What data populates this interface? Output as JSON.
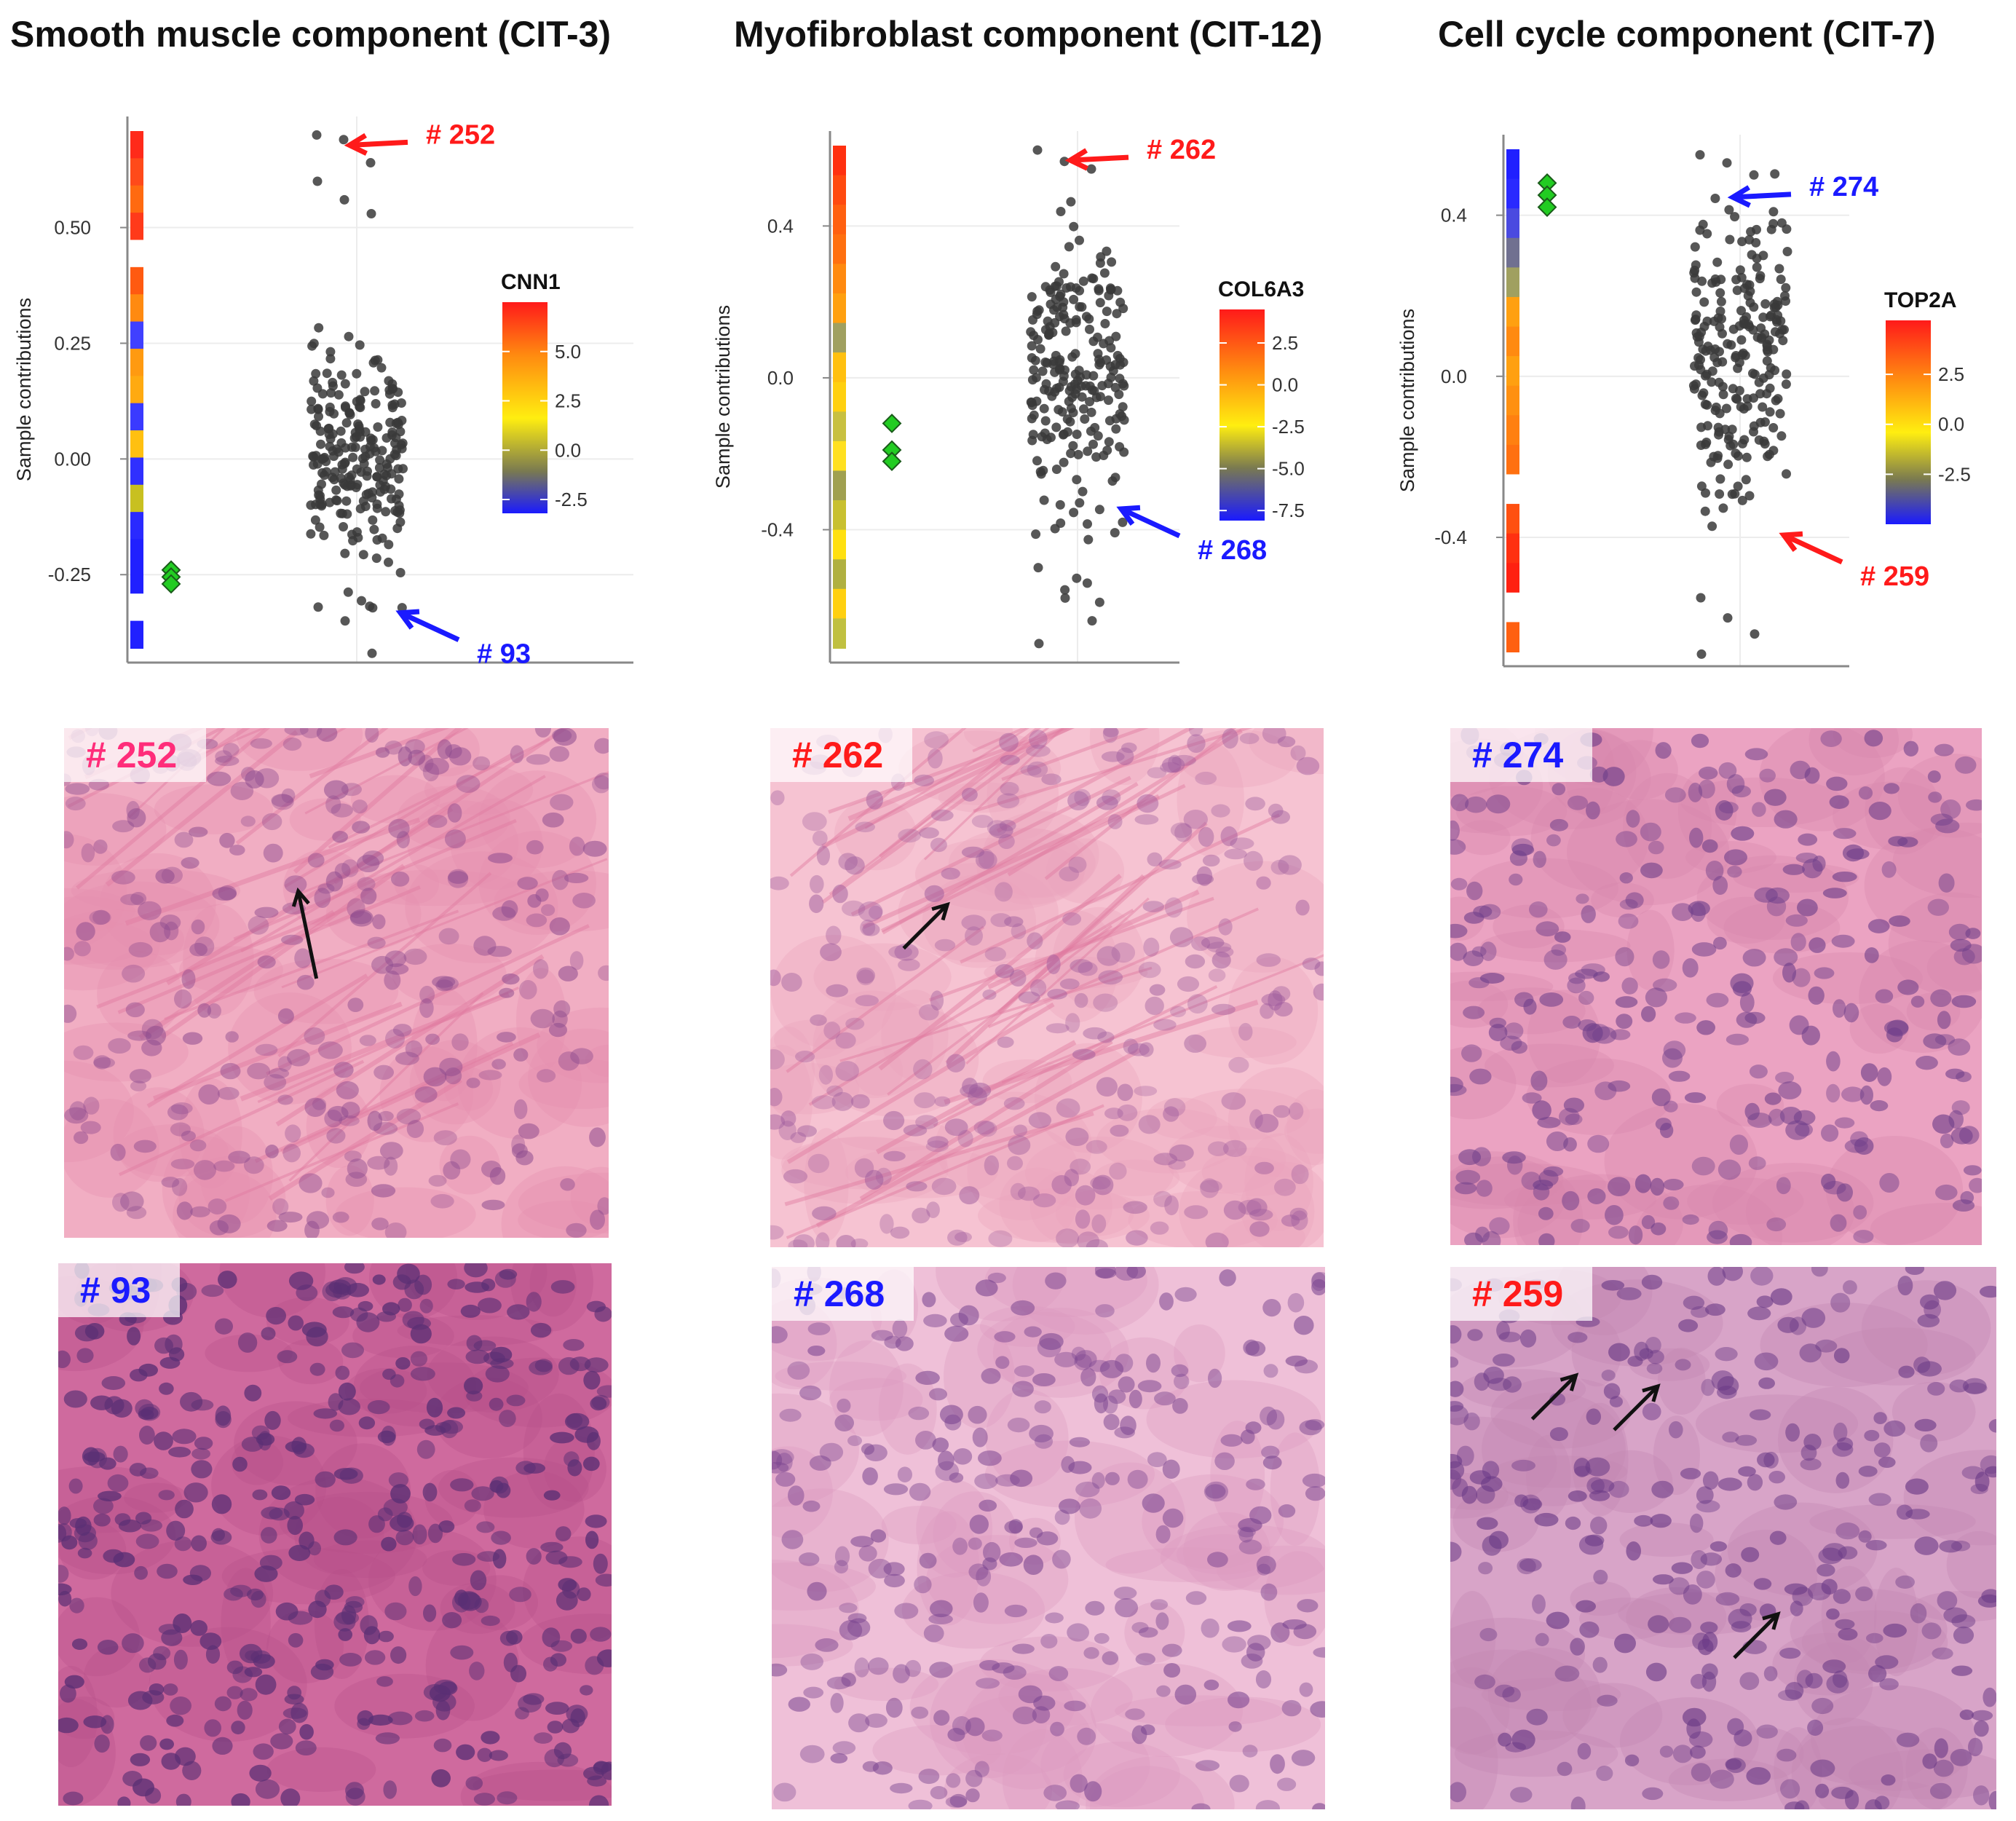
{
  "colors": {
    "red": "#ff1a1a",
    "blue": "#1a1aff",
    "pink": "#ff2d7a",
    "dot": "#3a3a3a",
    "diamond": "#22cc22"
  },
  "panels": [
    {
      "title": "Smooth muscle component (CIT-3)",
      "chart_data": {
        "type": "scatter",
        "ylabel": "Sample contributions",
        "ylim": [
          -0.44,
          0.74
        ],
        "yticks": [
          "0.50",
          "0.25",
          "0.00",
          "-0.25"
        ],
        "ytick_values": [
          0.5,
          0.25,
          0,
          -0.25
        ],
        "legend_title": "CNN1",
        "legend_ticks": [
          "5.0",
          "2.5",
          "0.0",
          "-2.5"
        ],
        "legend_tick_values": [
          5,
          2.5,
          0,
          -2.5
        ],
        "legend_range": [
          -3.2,
          7.5
        ],
        "point_center": 0.0,
        "point_spread": 0.13,
        "point_count": 230,
        "diamonds": [
          -0.24,
          -0.255,
          -0.27
        ],
        "outliers": [
          0.7,
          0.69,
          0.64,
          0.6,
          0.56,
          0.53,
          -0.32,
          -0.35,
          -0.42
        ],
        "annotations": [
          {
            "label": "# 252",
            "value": 0.7,
            "color": "red",
            "dir": "up"
          },
          {
            "label": "# 93",
            "value": -0.32,
            "color": "blue",
            "dir": "down"
          }
        ]
      },
      "images": [
        {
          "label": "# 252",
          "label_color": "pink",
          "stain": "pink-light",
          "arrows": 1
        },
        {
          "label": "# 93",
          "label_color": "blue",
          "stain": "purple-dense",
          "arrows": 0
        }
      ]
    },
    {
      "title": "Myofibroblast component (CIT-12)",
      "chart_data": {
        "type": "scatter",
        "ylabel": "Sample contributions",
        "ylim": [
          -0.75,
          0.65
        ],
        "yticks": [
          "0.4",
          "0.0",
          "-0.4"
        ],
        "ytick_values": [
          0.4,
          0,
          -0.4
        ],
        "legend_title": "COL6A3",
        "legend_ticks": [
          "2.5",
          "0.0",
          "-2.5",
          "-5.0",
          "-7.5"
        ],
        "legend_tick_values": [
          2.5,
          0,
          -2.5,
          -5,
          -7.5
        ],
        "legend_range": [
          -8.1,
          4.5
        ],
        "point_center": 0.0,
        "point_spread": 0.22,
        "point_count": 230,
        "diamonds": [
          -0.12,
          -0.19,
          -0.22
        ],
        "outliers": [
          0.6,
          0.57,
          0.55,
          -0.5,
          -0.58,
          -0.64,
          -0.7
        ],
        "annotations": [
          {
            "label": "# 262",
            "value": 0.6,
            "color": "red",
            "dir": "up"
          },
          {
            "label": "# 268",
            "value": -0.33,
            "color": "blue",
            "dir": "down"
          }
        ]
      },
      "images": [
        {
          "label": "# 262",
          "label_color": "red",
          "stain": "pink-fiber",
          "arrows": 1
        },
        {
          "label": "# 268",
          "label_color": "blue",
          "stain": "pink-clear",
          "arrows": 0
        }
      ]
    },
    {
      "title": "Cell cycle component (CIT-7)",
      "chart_data": {
        "type": "scatter",
        "ylabel": "Sample contributions",
        "ylim": [
          -0.72,
          0.6
        ],
        "yticks": [
          "0.4",
          "0.0",
          "-0.4"
        ],
        "ytick_values": [
          0.4,
          0,
          -0.4
        ],
        "legend_title": "TOP2A",
        "legend_ticks": [
          "2.5",
          "0.0",
          "-2.5"
        ],
        "legend_tick_values": [
          2.5,
          0,
          -2.5
        ],
        "legend_range": [
          -5.0,
          5.2
        ],
        "point_center": 0.05,
        "point_spread": 0.2,
        "point_count": 230,
        "diamonds": [
          0.48,
          0.45,
          0.42
        ],
        "outliers": [
          0.55,
          0.53,
          0.5,
          -0.55,
          -0.6,
          -0.64,
          -0.69
        ],
        "annotations": [
          {
            "label": "# 274",
            "value": 0.47,
            "color": "blue",
            "dir": "up"
          },
          {
            "label": "# 259",
            "value": -0.38,
            "color": "red",
            "dir": "down"
          }
        ]
      },
      "images": [
        {
          "label": "# 274",
          "label_color": "blue",
          "stain": "pink-columnar",
          "arrows": 0
        },
        {
          "label": "# 259",
          "label_color": "red",
          "stain": "purple-mitotic",
          "arrows": 3
        }
      ]
    }
  ]
}
